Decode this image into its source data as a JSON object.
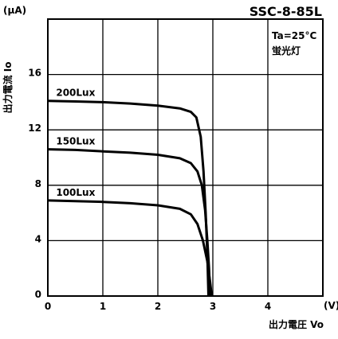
{
  "chart_data": {
    "type": "line",
    "model": "SSC-8-85L",
    "condition_lines": [
      "Ta=25°C",
      "蛍光灯"
    ],
    "y_unit": "(μA)",
    "x_unit": "(V)",
    "ylabel": "出力電流 Io",
    "xlabel": "出力電圧 Vo",
    "xlim": [
      0,
      5
    ],
    "ylim": [
      0,
      20
    ],
    "x_ticks": [
      "0",
      "1",
      "2",
      "3",
      "4"
    ],
    "y_ticks": [
      "0",
      "4",
      "8",
      "12",
      "16"
    ],
    "series": [
      {
        "name": "200Lux",
        "points": [
          [
            0,
            14.1
          ],
          [
            0.5,
            14.05
          ],
          [
            1.0,
            14.0
          ],
          [
            1.5,
            13.9
          ],
          [
            2.0,
            13.75
          ],
          [
            2.4,
            13.55
          ],
          [
            2.6,
            13.3
          ],
          [
            2.7,
            12.9
          ],
          [
            2.78,
            11.5
          ],
          [
            2.83,
            9.0
          ],
          [
            2.87,
            6.0
          ],
          [
            2.9,
            3.0
          ],
          [
            2.92,
            0
          ]
        ]
      },
      {
        "name": "150Lux",
        "points": [
          [
            0,
            10.6
          ],
          [
            0.5,
            10.55
          ],
          [
            1.0,
            10.45
          ],
          [
            1.5,
            10.35
          ],
          [
            2.0,
            10.2
          ],
          [
            2.4,
            9.95
          ],
          [
            2.6,
            9.6
          ],
          [
            2.72,
            9.0
          ],
          [
            2.8,
            8.0
          ],
          [
            2.86,
            6.2
          ],
          [
            2.9,
            4.0
          ],
          [
            2.93,
            2.0
          ],
          [
            2.95,
            0
          ]
        ]
      },
      {
        "name": "100Lux",
        "points": [
          [
            0,
            6.9
          ],
          [
            0.5,
            6.85
          ],
          [
            1.0,
            6.8
          ],
          [
            1.5,
            6.7
          ],
          [
            2.0,
            6.55
          ],
          [
            2.4,
            6.3
          ],
          [
            2.6,
            5.9
          ],
          [
            2.72,
            5.2
          ],
          [
            2.82,
            4.0
          ],
          [
            2.9,
            2.5
          ],
          [
            2.95,
            1.0
          ],
          [
            2.98,
            0
          ]
        ]
      }
    ]
  }
}
